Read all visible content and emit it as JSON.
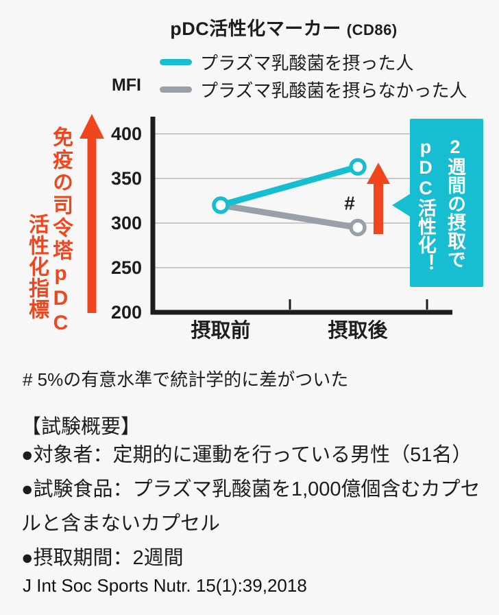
{
  "colors": {
    "teal": "#17bdd0",
    "gray": "#9aa0a8",
    "accent": "#f0461e",
    "text": "#1d1d1d",
    "grid": "#c9c9c9",
    "bg": "#f7f7f8",
    "marker_fill": "#ffffff"
  },
  "header": {
    "title_main": "pDC活性化マーカー",
    "title_suffix": "(CD86)",
    "ylabel": "MFI"
  },
  "legend": {
    "items": [
      {
        "label": "プラズマ乳酸菌を摂った人",
        "color_key": "teal"
      },
      {
        "label": "プラズマ乳酸菌を摂らなかった人",
        "color_key": "gray"
      }
    ]
  },
  "y_axis_banner": {
    "line1": "免疫の司令塔pDC",
    "line2": "活性化指標"
  },
  "callout": {
    "line1": "2週間の摂取で",
    "line2": "pDC活性化！"
  },
  "chart_data": {
    "type": "line",
    "title": "pDC活性化マーカー (CD86)",
    "ylabel": "MFI",
    "categories": [
      "摂取前",
      "摂取後"
    ],
    "series": [
      {
        "name": "プラズマ乳酸菌を摂った人",
        "color_key": "teal",
        "values": [
          320,
          363
        ]
      },
      {
        "name": "プラズマ乳酸菌を摂らなかった人",
        "color_key": "gray",
        "values": [
          320,
          295
        ]
      }
    ],
    "ylim": [
      200,
      400
    ],
    "yticks": [
      200,
      250,
      300,
      350,
      400
    ],
    "grid": true,
    "legend_position": "top",
    "annotation": {
      "text": "#",
      "category_index": 1,
      "value": 322
    }
  },
  "footnote": "# 5%の有意水準で統計学的に差がついた",
  "summary": {
    "heading": "【試験概要】",
    "lines": [
      "●対象者：定期的に運動を行っている男性（51名）",
      "●試験食品：プラズマ乳酸菌を1,000億個含むカプセ",
      "ルと含まないカプセル",
      "●摂取期間：2週間"
    ]
  },
  "citation": "J Int Soc Sports Nutr. 15(1):39,2018"
}
